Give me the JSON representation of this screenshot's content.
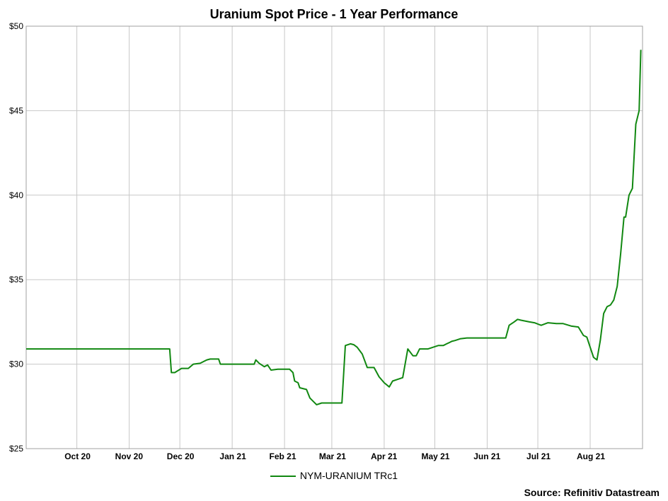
{
  "chart_data": {
    "type": "line",
    "title": "Uranium Spot Price - 1 Year Performance",
    "xlabel": "",
    "ylabel": "",
    "ylim": [
      25,
      50
    ],
    "yticks": [
      25,
      30,
      35,
      40,
      45,
      50
    ],
    "ytick_labels": [
      "$25",
      "$30",
      "$35",
      "$40",
      "$45",
      "$50"
    ],
    "xlim": [
      "2020-09-01",
      "2021-09-01"
    ],
    "xticks": [
      "2020-10-01",
      "2020-11-01",
      "2020-12-01",
      "2021-01-01",
      "2021-02-01",
      "2021-03-01",
      "2021-04-01",
      "2021-05-01",
      "2021-06-01",
      "2021-07-01",
      "2021-08-01"
    ],
    "xtick_labels": [
      "Oct 20",
      "Nov 20",
      "Dec 20",
      "Jan 21",
      "Feb 21",
      "Mar 21",
      "Apr 21",
      "May 21",
      "Jun 21",
      "Jul 21",
      "Aug 21"
    ],
    "grid": true,
    "legend": "bottom",
    "series": [
      {
        "name": "NYM-URANIUM TRc1",
        "color": "#118811",
        "x": [
          "2020-09-01",
          "2020-11-25",
          "2020-11-26",
          "2020-11-28",
          "2020-12-02",
          "2020-12-06",
          "2020-12-09",
          "2020-12-13",
          "2020-12-17",
          "2020-12-19",
          "2020-12-24",
          "2020-12-25",
          "2021-01-14",
          "2021-01-15",
          "2021-01-17",
          "2021-01-20",
          "2021-01-22",
          "2021-01-24",
          "2021-01-28",
          "2021-02-04",
          "2021-02-06",
          "2021-02-07",
          "2021-02-09",
          "2021-02-10",
          "2021-02-14",
          "2021-02-16",
          "2021-02-20",
          "2021-02-23",
          "2021-03-01",
          "2021-03-05",
          "2021-03-07",
          "2021-03-09",
          "2021-03-12",
          "2021-03-14",
          "2021-03-16",
          "2021-03-19",
          "2021-03-22",
          "2021-03-26",
          "2021-03-29",
          "2021-04-01",
          "2021-04-04",
          "2021-04-06",
          "2021-04-09",
          "2021-04-12",
          "2021-04-15",
          "2021-04-18",
          "2021-04-20",
          "2021-04-22",
          "2021-04-24",
          "2021-04-27",
          "2021-05-03",
          "2021-05-06",
          "2021-05-08",
          "2021-05-10",
          "2021-05-11",
          "2021-05-13",
          "2021-05-16",
          "2021-05-20",
          "2021-05-23",
          "2021-06-12",
          "2021-06-14",
          "2021-06-17",
          "2021-06-19",
          "2021-06-21",
          "2021-06-26",
          "2021-06-29",
          "2021-07-03",
          "2021-07-07",
          "2021-07-12",
          "2021-07-16",
          "2021-07-21",
          "2021-07-25",
          "2021-07-28",
          "2021-07-30",
          "2021-08-01",
          "2021-08-03",
          "2021-08-05",
          "2021-08-07",
          "2021-08-09",
          "2021-08-11",
          "2021-08-13",
          "2021-08-15",
          "2021-08-17",
          "2021-08-19",
          "2021-08-21",
          "2021-08-22",
          "2021-08-24",
          "2021-08-26",
          "2021-08-28",
          "2021-08-30",
          "2021-08-31"
        ],
        "y": [
          30.9,
          30.9,
          29.5,
          29.5,
          29.75,
          29.75,
          30.0,
          30.05,
          30.25,
          30.3,
          30.3,
          30.0,
          30.0,
          30.25,
          30.05,
          29.85,
          29.95,
          29.65,
          29.7,
          29.7,
          29.5,
          29.0,
          28.9,
          28.6,
          28.5,
          28.0,
          27.6,
          27.7,
          27.7,
          27.7,
          27.7,
          31.1,
          31.2,
          31.15,
          31.0,
          30.6,
          29.8,
          29.8,
          29.25,
          28.9,
          28.65,
          29.0,
          29.1,
          29.2,
          30.9,
          30.5,
          30.5,
          30.9,
          30.9,
          30.9,
          31.1,
          31.1,
          31.2,
          31.3,
          31.35,
          31.4,
          31.5,
          31.55,
          31.55,
          31.55,
          32.3,
          32.5,
          32.65,
          32.6,
          32.5,
          32.45,
          32.3,
          32.45,
          32.4,
          32.4,
          32.25,
          32.2,
          31.7,
          31.6,
          31.0,
          30.4,
          30.25,
          31.4,
          33.0,
          33.4,
          33.5,
          33.8,
          34.6,
          36.5,
          38.7,
          38.7,
          40.0,
          40.4,
          44.2,
          45.0,
          48.6
        ]
      }
    ]
  },
  "source_label": "Source: Refinitiv Datastream"
}
